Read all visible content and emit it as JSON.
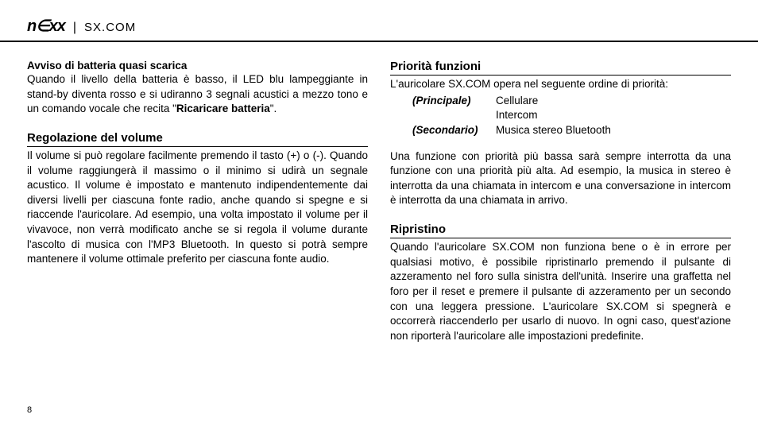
{
  "header": {
    "logo": "n∈xx",
    "separator": "|",
    "subbrand": "SX.COM"
  },
  "left": {
    "notice_title": "Avviso di batteria quasi scarica",
    "notice_text_1": "Quando il livello della batteria è basso, il LED blu lampeggiante in stand-by diventa rosso e si udiranno 3 segnali acustici a mezzo tono e un comando vocale che recita \"",
    "notice_bold": "Ricaricare batteria",
    "notice_text_2": "\".",
    "vol_title": "Regolazione del volume",
    "vol_text": "Il volume si può regolare facilmente premendo il tasto (+) o (-). Quando il volume raggiungerà il massimo o il minimo si udirà un segnale acustico. Il volume è impostato e mantenuto indipendentemente dai diversi livelli per ciascuna fonte radio, anche quando si spegne e si riaccende l'auricolare. Ad esempio, una volta impostato il volume per il vivavoce, non verrà modificato anche se si regola il volume durante l'ascolto di musica con l'MP3 Bluetooth. In questo si potrà sempre mantenere il volume ottimale preferito per ciascuna fonte audio."
  },
  "right": {
    "prio_title": "Priorità funzioni",
    "prio_intro": "L'auricolare SX.COM opera nel seguente ordine di priorità:",
    "prio_main_label": "(Principale)",
    "prio_main_1": "Cellulare",
    "prio_main_2": "Intercom",
    "prio_sec_label": "(Secondario)",
    "prio_sec_1": "Musica stereo Bluetooth",
    "prio_text": "Una funzione con priorità più bassa sarà sempre interrotta da una funzione con una priorità più alta. Ad esempio, la musica in stereo è interrotta da una chiamata in intercom e una conversazione in intercom è interrotta da una chiamata in arrivo.",
    "reset_title": "Ripristino",
    "reset_text": "Quando l'auricolare SX.COM non funziona bene o è in errore per qualsiasi motivo, è possibile ripristinarlo premendo il pulsante di azzeramento nel foro sulla sinistra dell'unità. Inserire una graffetta nel foro per il reset e premere il pulsante di azzeramento per un secondo con una leggera pressione. L'auricolare SX.COM si spegnerà e occorrerà riaccenderlo per usarlo di nuovo. In ogni caso, quest'azione non riporterà l'auricolare alle impostazioni predefinite."
  },
  "pagenum": "8"
}
